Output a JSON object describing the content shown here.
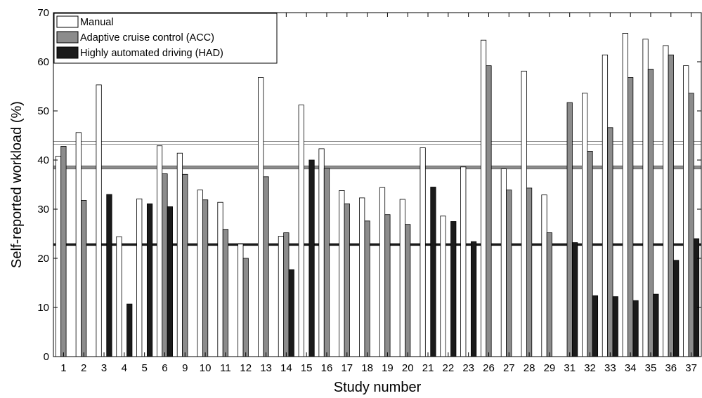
{
  "chart_data": {
    "type": "bar",
    "title": "",
    "xlabel": "Study number",
    "ylabel": "Self-reported workload (%)",
    "ylim": [
      0,
      70
    ],
    "yticks": [
      0,
      10,
      20,
      30,
      40,
      50,
      60,
      70
    ],
    "grid": false,
    "legend_position": "top-left",
    "categories": [
      "1",
      "2",
      "3",
      "4",
      "5",
      "6",
      "9",
      "10",
      "11",
      "12",
      "13",
      "14",
      "15",
      "16",
      "17",
      "18",
      "19",
      "20",
      "21",
      "22",
      "23",
      "26",
      "27",
      "28",
      "29",
      "31",
      "32",
      "33",
      "34",
      "35",
      "36",
      "37"
    ],
    "series": [
      {
        "name": "Manual",
        "color": "#ffffff",
        "values": [
          40.8,
          45.6,
          55.3,
          24.4,
          32.1,
          42.9,
          41.4,
          33.9,
          31.4,
          22.9,
          56.8,
          24.5,
          51.2,
          42.3,
          33.8,
          32.3,
          34.4,
          32.0,
          42.5,
          28.6,
          38.6,
          64.4,
          38.2,
          58.1,
          32.9,
          null,
          53.6,
          61.4,
          65.8,
          64.6,
          63.3,
          59.2
        ]
      },
      {
        "name": "Adaptive cruise control (ACC)",
        "color": "#8c8c8c",
        "values": [
          42.8,
          31.8,
          null,
          null,
          null,
          37.2,
          37.1,
          31.9,
          25.9,
          20.0,
          36.6,
          25.2,
          null,
          38.3,
          31.1,
          27.6,
          28.9,
          26.9,
          null,
          null,
          null,
          59.2,
          33.9,
          34.3,
          25.2,
          51.7,
          41.8,
          46.6,
          56.8,
          58.5,
          61.4,
          53.6
        ]
      },
      {
        "name": "Highly automated driving (HAD)",
        "color": "#1a1a1a",
        "values": [
          null,
          null,
          33.0,
          10.7,
          31.1,
          30.5,
          null,
          null,
          null,
          null,
          null,
          17.7,
          40.0,
          null,
          null,
          null,
          null,
          null,
          34.5,
          27.5,
          23.4,
          null,
          null,
          null,
          null,
          23.2,
          12.4,
          12.2,
          11.4,
          12.7,
          19.6,
          24.0
        ]
      }
    ],
    "reference_lines": [
      {
        "series": "Manual",
        "value": 43.5
      },
      {
        "series": "Adaptive cruise control (ACC)",
        "value": 38.5
      },
      {
        "series": "Highly automated driving (HAD)",
        "value": 22.8
      }
    ]
  }
}
